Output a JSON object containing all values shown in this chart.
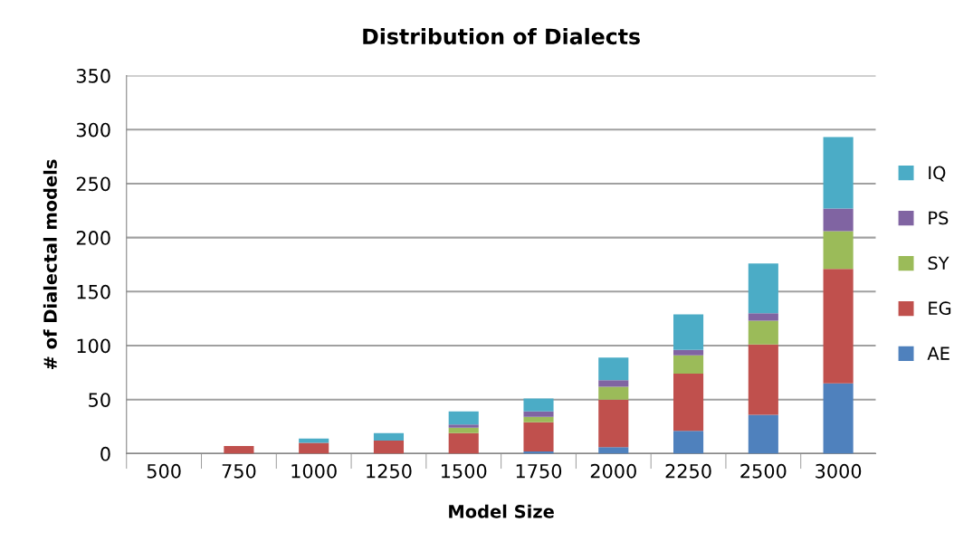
{
  "chart_data": {
    "type": "bar",
    "title": "Distribution of Dialects",
    "xlabel": "Model Size",
    "ylabel": "# of Dialectal models",
    "categories": [
      "500",
      "750",
      "1000",
      "1250",
      "1500",
      "1750",
      "2000",
      "2250",
      "2500",
      "3000"
    ],
    "stacked": true,
    "ylim": [
      0,
      350
    ],
    "yticks": [
      0,
      50,
      100,
      150,
      200,
      250,
      300,
      350
    ],
    "grid": "y",
    "legend": "right",
    "series": [
      {
        "name": "AE",
        "color": "#4f81bd",
        "values": [
          0,
          0,
          0,
          0,
          0,
          2,
          6,
          21,
          36,
          65
        ]
      },
      {
        "name": "EG",
        "color": "#c0504d",
        "values": [
          0,
          7,
          10,
          12,
          19,
          27,
          44,
          53,
          65,
          106
        ]
      },
      {
        "name": "SY",
        "color": "#9bbb59",
        "values": [
          0,
          0,
          0,
          0,
          5,
          5,
          12,
          17,
          22,
          35
        ]
      },
      {
        "name": "PS",
        "color": "#8064a2",
        "values": [
          0,
          0,
          0,
          0,
          3,
          5,
          6,
          5,
          7,
          21
        ]
      },
      {
        "name": "IQ",
        "color": "#4bacc6",
        "values": [
          0,
          0,
          4,
          7,
          12,
          12,
          21,
          33,
          46,
          66
        ]
      }
    ]
  }
}
